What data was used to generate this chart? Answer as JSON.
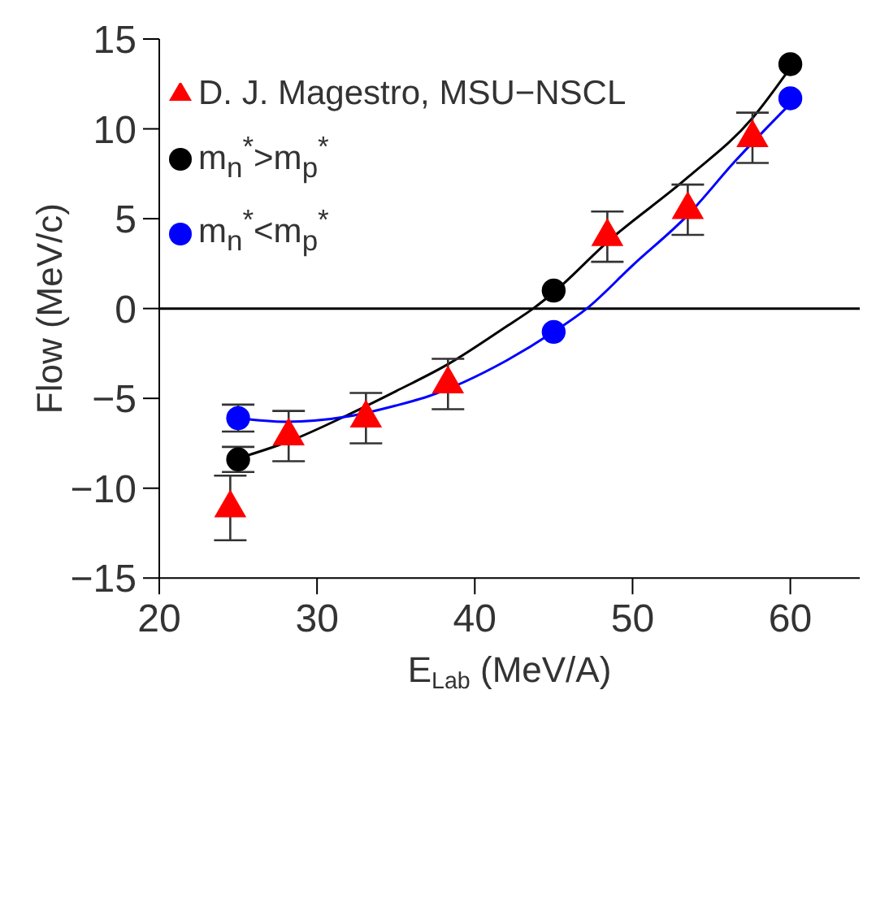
{
  "chart_data": {
    "type": "scatter",
    "xlabel": "E$_{Lab}$ (MeV/A)",
    "ylabel": "Flow (MeV/c)",
    "xlim": [
      20,
      64.4
    ],
    "xticks": [
      20,
      30,
      40,
      50,
      60
    ],
    "ylim": [
      -15,
      15
    ],
    "yticks": [
      -15,
      -10,
      -5,
      0,
      5,
      10,
      15
    ],
    "grid": false,
    "legend": "top left",
    "ref_lines": [
      {
        "axis": "y",
        "value": 0,
        "color": "#000000"
      }
    ],
    "series": [
      {
        "name": "D. J. Magestro, MSU−NSCL",
        "marker": "triangle",
        "color": "#ff0000",
        "x": [
          24.5,
          28.2,
          33.1,
          38.3,
          48.4,
          53.5,
          57.6
        ],
        "values": [
          -11.1,
          -7.1,
          -6.1,
          -4.2,
          4.0,
          5.5,
          9.5
        ],
        "errors": [
          1.8,
          1.4,
          1.4,
          1.4,
          1.4,
          1.4,
          1.4
        ]
      },
      {
        "name": "m$_{n}$$^{*}$>m$_{p}$$^{*}$",
        "marker": "circle",
        "color": "#000000",
        "x": [
          25,
          45,
          60
        ],
        "values": [
          -8.4,
          1.0,
          13.6
        ],
        "errors": [
          0.7,
          null,
          null
        ]
      },
      {
        "name": "m$_{n}$$^{*}$<m$_{p}$$^{*}$",
        "marker": "circle",
        "color": "#0000ff",
        "x": [
          25,
          45,
          60
        ],
        "values": [
          -6.1,
          -1.3,
          11.7
        ],
        "errors": [
          0.75,
          null,
          null
        ]
      },
      {
        "type": "line",
        "marker": "none",
        "color": "#000000",
        "x": [
          25.5,
          28.2,
          32,
          35,
          38.3,
          42,
          43.7,
          45,
          48.4,
          53.5,
          57.6,
          60
        ],
        "values": [
          -8.2,
          -7.4,
          -5.9,
          -4.6,
          -3.1,
          -1.0,
          0,
          0.9,
          3.7,
          7.3,
          10.6,
          13.4
        ]
      },
      {
        "type": "line",
        "marker": "none",
        "color": "#0000ff",
        "x": [
          25,
          28,
          32,
          35,
          37,
          42,
          45,
          47.1,
          50,
          53.5,
          56.5,
          60
        ],
        "values": [
          -6.1,
          -6.3,
          -6.0,
          -5.4,
          -4.9,
          -2.9,
          -1.3,
          0,
          2.4,
          5.2,
          8.2,
          11.4
        ]
      }
    ]
  }
}
